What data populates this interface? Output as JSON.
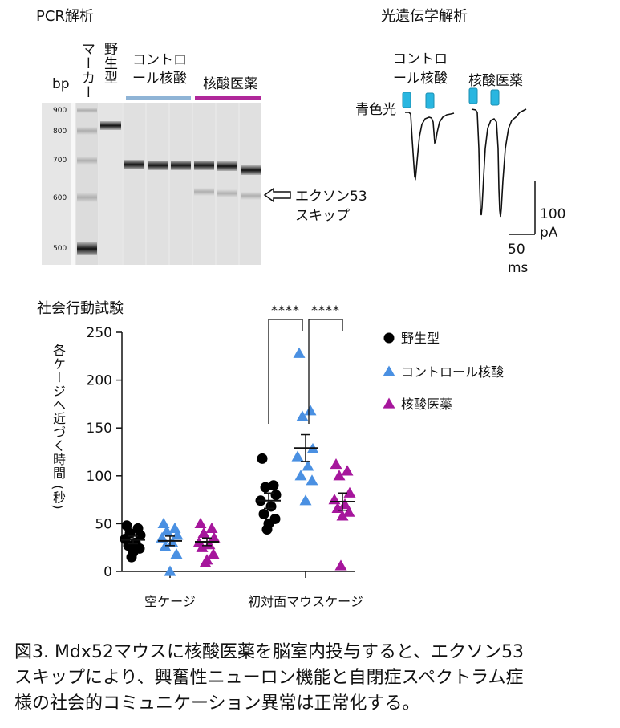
{
  "pcr": {
    "title": "PCR解析",
    "bp_label": "bp",
    "lane_marker_label": "マーカー",
    "lane_wt_label": "野生型",
    "group_control_label": "コントロ ール核酸",
    "group_control_line1": "コントロ",
    "group_control_line2": "ール核酸",
    "group_drug_label": "核酸医薬",
    "ladder_ticks": [
      "900",
      "800",
      "700",
      "600",
      "500"
    ],
    "skip_label_line1": "エクソン53",
    "skip_label_line2": "スキップ",
    "colors": {
      "control": "#8fb4d6",
      "drug": "#b0279a"
    }
  },
  "photo": {
    "title": "光遺伝学解析",
    "control_line1": "コントロ",
    "control_line2": "ール核酸",
    "drug_label": "核酸医薬",
    "blue_light_label": "青色光",
    "scale_y_value": "100",
    "scale_y_unit": "pA",
    "scale_x_value": "50",
    "scale_x_unit": "ms",
    "colors": {
      "light": "#29b6e0"
    }
  },
  "chart_data": {
    "type": "scatter",
    "title": "社会行動試験",
    "ylabel": "各ケージへ近づく時間 (秒)",
    "ylim": [
      0,
      250
    ],
    "yticks": [
      "0",
      "50",
      "100",
      "150",
      "200",
      "250"
    ],
    "categories": [
      "空ケージ",
      "初対面マウスケージ"
    ],
    "significance": [
      "****",
      "****"
    ],
    "series": [
      {
        "name": "野生型",
        "color": "#000000",
        "marker": "circle",
        "mean": [
          33,
          74
        ],
        "sem": [
          4,
          8
        ],
        "points": [
          [
            48,
            45,
            40,
            38,
            34,
            30,
            27,
            24,
            20,
            15
          ],
          [
            118,
            90,
            88,
            80,
            74,
            68,
            60,
            55,
            50,
            44
          ]
        ]
      },
      {
        "name": "コントロール核酸",
        "color": "#4a90e2",
        "marker": "triangle",
        "mean": [
          32,
          129
        ],
        "sem": [
          5,
          14
        ],
        "points": [
          [
            50,
            45,
            42,
            38,
            35,
            30,
            26,
            18,
            0
          ],
          [
            228,
            168,
            162,
            128,
            120,
            110,
            100,
            95,
            74
          ]
        ]
      },
      {
        "name": "核酸医薬",
        "color": "#a6169c",
        "marker": "triangle",
        "mean": [
          31,
          73
        ],
        "sem": [
          4,
          9
        ],
        "points": [
          [
            50,
            45,
            40,
            35,
            30,
            28,
            25,
            18,
            12,
            9
          ],
          [
            112,
            105,
            100,
            82,
            75,
            70,
            66,
            62,
            58,
            6
          ]
        ]
      }
    ]
  },
  "caption": {
    "line1": "図3. Mdx52マウスに核酸医薬を脳室内投与すると、エクソン53",
    "line2": "スキップにより、興奮性ニューロン機能と自閉症スペクトラム症",
    "line3": "様の社会的コミュニケーション異常は正常化する。"
  }
}
